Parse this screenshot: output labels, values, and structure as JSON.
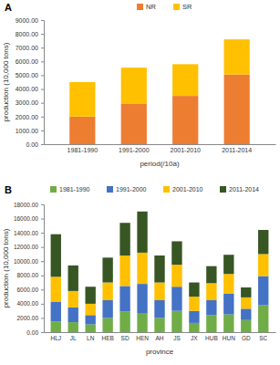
{
  "chart_data": [
    {
      "type": "bar",
      "title": "A",
      "stacked": true,
      "legend": "top",
      "grid": false,
      "x_label": "period(/10a)",
      "y_label": "production (10,000 tons)",
      "categories": [
        "1981-1990",
        "1991-2000",
        "2001-2010",
        "2011-2014"
      ],
      "series": [
        {
          "name": "NR",
          "color": "#ed7d31",
          "values": [
            2000,
            2950,
            3500,
            5050
          ]
        },
        {
          "name": "SR",
          "color": "#ffc000",
          "values": [
            2500,
            2600,
            2300,
            2550
          ]
        }
      ],
      "ylim": [
        0,
        9000
      ],
      "yticks": [
        {
          "value": 0,
          "label": "0.00"
        },
        {
          "value": 1000,
          "label": "1000.00"
        },
        {
          "value": 2000,
          "label": "2000.00"
        },
        {
          "value": 3000,
          "label": "3000.00"
        },
        {
          "value": 4000,
          "label": "4000.00"
        },
        {
          "value": 5000,
          "label": "5000.00"
        },
        {
          "value": 6000,
          "label": "6000.00"
        },
        {
          "value": 7000,
          "label": "7000.00"
        },
        {
          "value": 8000,
          "label": "8000.00"
        },
        {
          "value": 9000,
          "label": "9000.00"
        }
      ]
    },
    {
      "type": "bar",
      "title": "B",
      "stacked": true,
      "legend": "top",
      "grid": false,
      "x_label": "province",
      "y_label": "production (10,000 tons)",
      "categories": [
        "HLJ",
        "JL",
        "LN",
        "HEB",
        "SD",
        "HEN",
        "AH",
        "JS",
        "JX",
        "HUB",
        "HUN",
        "GD",
        "SC"
      ],
      "series": [
        {
          "name": "1981-1990",
          "color": "#70ad47",
          "values": [
            1500,
            1400,
            1100,
            2000,
            2900,
            2700,
            2000,
            3000,
            1300,
            2400,
            2500,
            1700,
            3800
          ]
        },
        {
          "name": "1991-2000",
          "color": "#4472c4",
          "values": [
            2800,
            2100,
            1300,
            2500,
            3600,
            4100,
            2500,
            3400,
            1700,
            2100,
            2900,
            1600,
            4100
          ]
        },
        {
          "name": "2001-2010",
          "color": "#ffc000",
          "values": [
            3500,
            2300,
            1600,
            2500,
            4300,
            4400,
            2500,
            3100,
            2000,
            2400,
            2800,
            1600,
            3100
          ]
        },
        {
          "name": "2011-2014",
          "color": "#375623",
          "values": [
            6000,
            3600,
            2400,
            3500,
            4600,
            5800,
            3800,
            3300,
            2000,
            2400,
            2700,
            1400,
            3400
          ]
        }
      ],
      "ylim": [
        0,
        18000
      ],
      "yticks": [
        {
          "value": 0,
          "label": "0.00"
        },
        {
          "value": 2000,
          "label": "2000.00"
        },
        {
          "value": 4000,
          "label": "4000.00"
        },
        {
          "value": 6000,
          "label": "6000.00"
        },
        {
          "value": 8000,
          "label": "8000.00"
        },
        {
          "value": 10000,
          "label": "10000.00"
        },
        {
          "value": 12000,
          "label": "12000.00"
        },
        {
          "value": 14000,
          "label": "14000.00"
        },
        {
          "value": 16000,
          "label": "16000.00"
        },
        {
          "value": 18000,
          "label": "18000.00"
        }
      ]
    }
  ]
}
